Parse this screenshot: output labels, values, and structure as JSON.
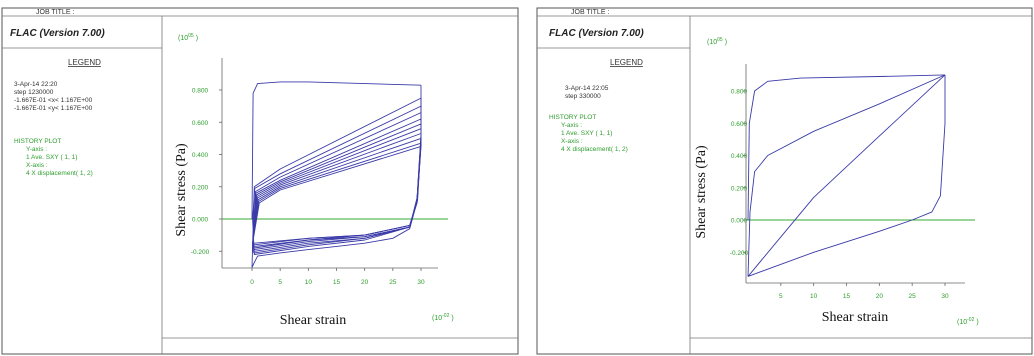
{
  "panels": [
    {
      "job_title": "JOB TITLE :",
      "program": "FLAC (Version 7.00)",
      "legend": {
        "heading": "LEGEND",
        "lines": [
          "3-Apr-14  22:20",
          "step  1230000",
          "-1.667E-01 <x< 1.167E+00",
          "-1.667E-01 <y< 1.167E+00"
        ]
      },
      "history": {
        "heading": "HISTORY PLOT",
        "lines": [
          "Y-axis :",
          "1 Ave. SXY     (  1,   1)",
          "X-axis :",
          "4  X displacement(   1,   2)"
        ]
      },
      "y_exp": "(10",
      "y_exp_sup": "05",
      "y_exp_close": ")",
      "x_exp": "(10",
      "x_exp_sup": "-02",
      "x_exp_close": ")",
      "ylabel": "Shear stress (Pa)",
      "xlabel": "Shear strain"
    },
    {
      "job_title": "JOB TITLE :",
      "program": "FLAC (Version 7.00)",
      "legend": {
        "heading": "LEGEND",
        "lines": [
          "3-Apr-14  22:05",
          "step  330000"
        ]
      },
      "history": {
        "heading": "HISTORY PLOT",
        "lines": [
          "Y-axis :",
          "1 Ave. SXY     (  1,   1)",
          "X-axis :",
          "4  X displacement(   1,   2)"
        ]
      },
      "y_exp": "(10",
      "y_exp_sup": "05",
      "y_exp_close": ")",
      "x_exp": "(10",
      "x_exp_sup": "-02",
      "x_exp_close": ")",
      "ylabel": "Shear stress (Pa)",
      "xlabel": "Shear strain"
    }
  ],
  "colors": {
    "curve": "#3a3aa8",
    "text_green": "#2e9e2e",
    "zero_line": "#33aa33",
    "axis": "#666666"
  },
  "chart_data": [
    {
      "type": "line",
      "xlabel": "Shear strain",
      "ylabel": "Shear stress (Pa)",
      "x_ticks": [
        "0",
        "5",
        "10",
        "15",
        "20",
        "25",
        "30"
      ],
      "y_ticks": [
        "0.800",
        "0.600",
        "0.400",
        "0.200",
        "0.000",
        "-0.200"
      ],
      "xlim": [
        -5,
        33
      ],
      "ylim": [
        -0.32,
        1.0
      ],
      "grid": false,
      "series": [
        {
          "x": [
            0,
            0.2,
            1,
            5,
            10,
            20,
            30
          ],
          "y": [
            0.0,
            0.78,
            0.84,
            0.85,
            0.85,
            0.84,
            0.83
          ]
        },
        {
          "x": [
            30,
            30,
            29.4,
            28,
            25,
            20,
            15,
            10,
            5,
            1,
            0.4,
            0
          ],
          "y": [
            0.83,
            0.5,
            0.12,
            -0.06,
            -0.12,
            -0.15,
            -0.17,
            -0.19,
            -0.21,
            -0.23,
            -0.27,
            -0.3
          ]
        },
        {
          "x": [
            0,
            0.4,
            5,
            30,
            30,
            29.3,
            28,
            20,
            10,
            0.4,
            0.1
          ],
          "y": [
            -0.3,
            0.2,
            0.31,
            0.75,
            0.52,
            0.13,
            -0.05,
            -0.13,
            -0.17,
            -0.22,
            0.0
          ]
        },
        {
          "x": [
            0.1,
            0.5,
            5,
            30,
            30,
            29.3,
            28,
            20,
            10,
            0.4,
            0.1
          ],
          "y": [
            0.0,
            0.19,
            0.28,
            0.7,
            0.52,
            0.13,
            -0.05,
            -0.12,
            -0.16,
            -0.21,
            -0.2
          ]
        },
        {
          "x": [
            0.1,
            0.6,
            5,
            30,
            30,
            29.3,
            28,
            20,
            10,
            0.4,
            0.1
          ],
          "y": [
            -0.2,
            0.17,
            0.26,
            0.66,
            0.5,
            0.12,
            -0.05,
            -0.12,
            -0.15,
            -0.2,
            -0.19
          ]
        },
        {
          "x": [
            0.1,
            0.7,
            5,
            30,
            30,
            29.3,
            28,
            20,
            10,
            0.4,
            0.1
          ],
          "y": [
            -0.19,
            0.16,
            0.24,
            0.62,
            0.49,
            0.12,
            -0.05,
            -0.11,
            -0.14,
            -0.19,
            -0.18
          ]
        },
        {
          "x": [
            0.1,
            0.8,
            5,
            30,
            30,
            29.3,
            28,
            20,
            10,
            0.4,
            0.1
          ],
          "y": [
            -0.18,
            0.15,
            0.23,
            0.59,
            0.48,
            0.12,
            -0.05,
            -0.11,
            -0.13,
            -0.18,
            -0.17
          ]
        },
        {
          "x": [
            0.1,
            0.9,
            5,
            30,
            30,
            29.3,
            28,
            20,
            10,
            0.4,
            0.1
          ],
          "y": [
            -0.17,
            0.14,
            0.22,
            0.56,
            0.47,
            0.11,
            -0.04,
            -0.1,
            -0.13,
            -0.17,
            -0.16
          ]
        },
        {
          "x": [
            0.1,
            1.0,
            5,
            30,
            30,
            29.3,
            28,
            20,
            10,
            0.4,
            0.1
          ],
          "y": [
            -0.16,
            0.13,
            0.21,
            0.53,
            0.46,
            0.11,
            -0.04,
            -0.1,
            -0.12,
            -0.16,
            -0.15
          ]
        },
        {
          "x": [
            0.1,
            1.1,
            5,
            30,
            30,
            29.3,
            28,
            20,
            10,
            0.4,
            0.1
          ],
          "y": [
            -0.15,
            0.12,
            0.2,
            0.5,
            0.45,
            0.1,
            -0.04,
            -0.1,
            -0.12,
            -0.15,
            -0.15
          ]
        },
        {
          "x": [
            0.1,
            1.2,
            5,
            30
          ],
          "y": [
            -0.15,
            0.11,
            0.19,
            0.47
          ]
        },
        {
          "x": [
            0.1,
            1.3,
            5,
            30
          ],
          "y": [
            -0.15,
            0.1,
            0.18,
            0.45
          ]
        }
      ]
    },
    {
      "type": "line",
      "xlabel": "Shear strain",
      "ylabel": "Shear stress (Pa)",
      "x_ticks": [
        "5",
        "10",
        "15",
        "20",
        "25",
        "30"
      ],
      "y_ticks": [
        "0.800",
        "0.600",
        "0.400",
        "0.200",
        "0.000",
        "-0.200"
      ],
      "xlim": [
        -1,
        33
      ],
      "ylim": [
        -0.45,
        1.0
      ],
      "grid": false,
      "series": [
        {
          "x": [
            0,
            0.2,
            1,
            3,
            8,
            20,
            30
          ],
          "y": [
            0.0,
            0.6,
            0.8,
            0.86,
            0.88,
            0.89,
            0.9
          ]
        },
        {
          "x": [
            30,
            30,
            29.3,
            28,
            25,
            20,
            10,
            0
          ],
          "y": [
            0.9,
            0.6,
            0.15,
            0.05,
            0.0,
            -0.07,
            -0.2,
            -0.35
          ]
        },
        {
          "x": [
            0,
            0.3,
            1,
            3,
            10,
            20,
            30
          ],
          "y": [
            -0.35,
            0.05,
            0.3,
            0.4,
            0.55,
            0.72,
            0.9
          ]
        },
        {
          "x": [
            30,
            20,
            10,
            0
          ],
          "y": [
            0.9,
            0.52,
            0.14,
            -0.35
          ]
        }
      ]
    }
  ]
}
